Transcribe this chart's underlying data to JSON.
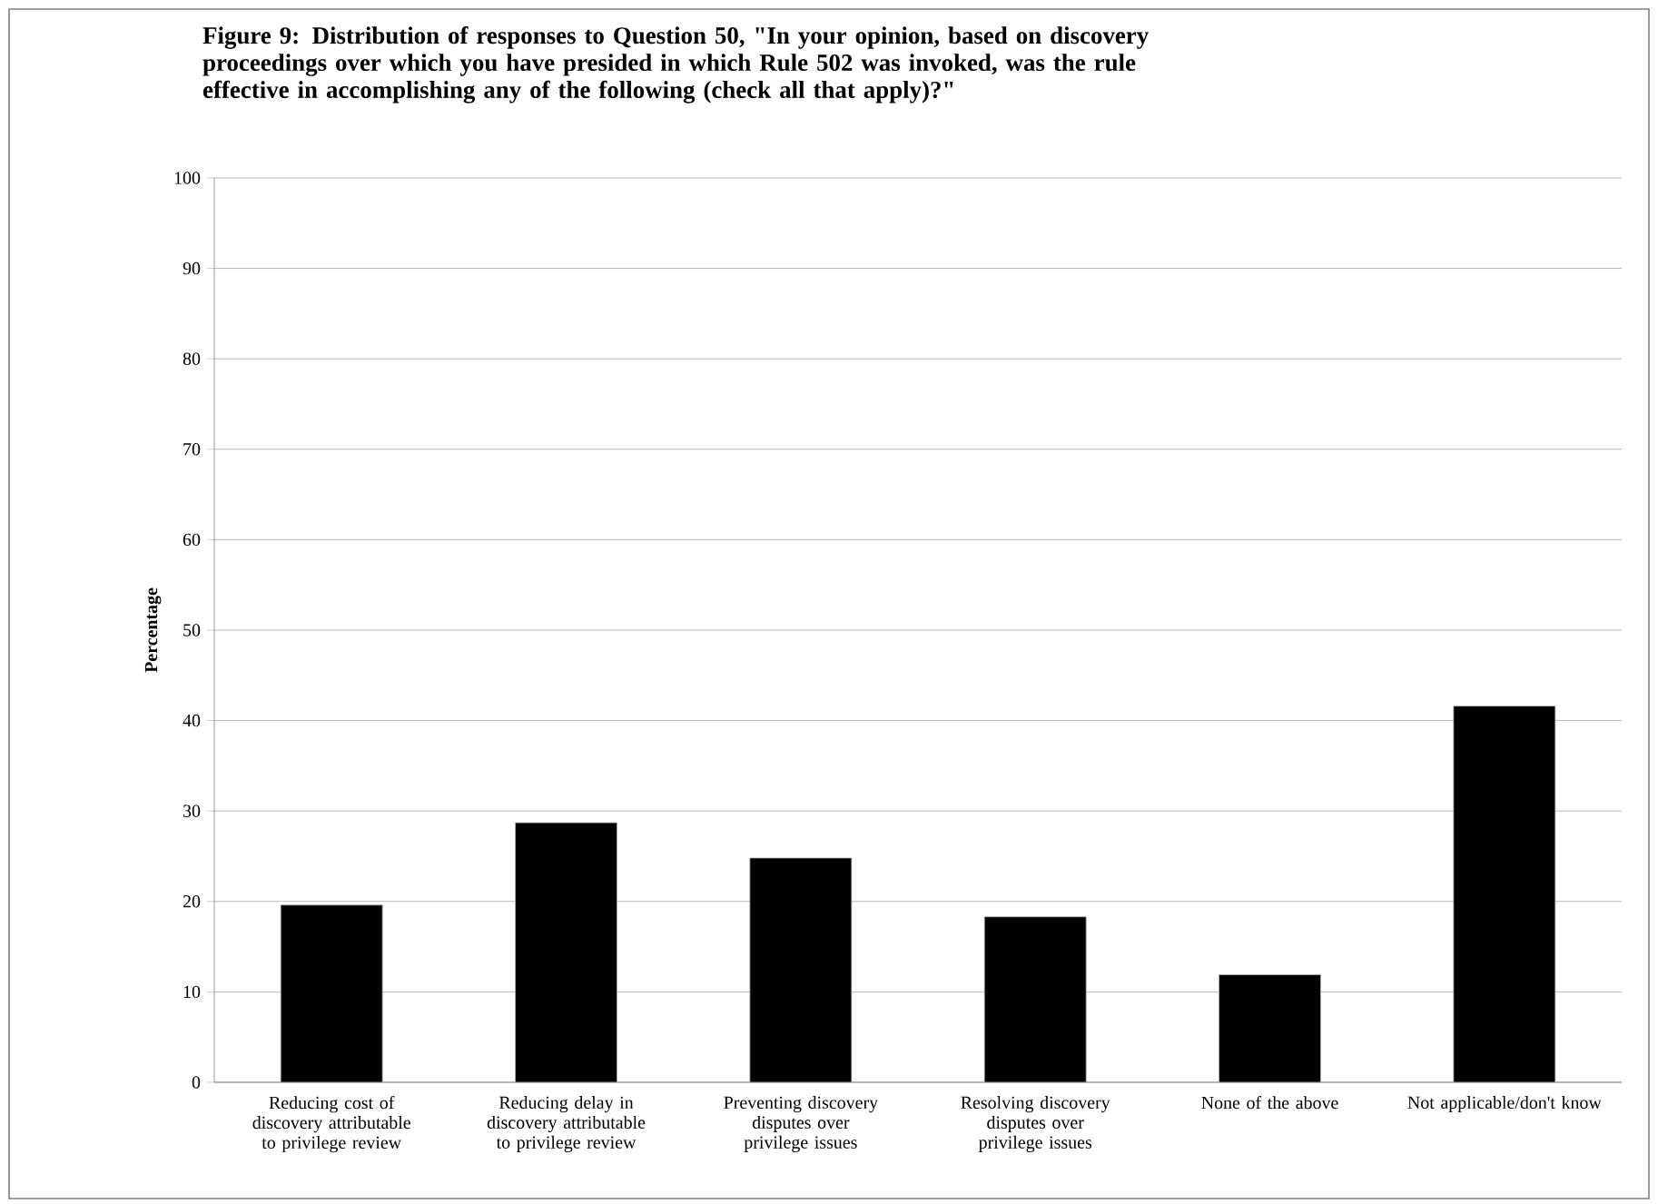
{
  "chart_data": {
    "type": "bar",
    "title": "Figure 9: Distribution of responses to Question 50, \"In your opinion, based on discovery proceedings over which you have presided in which Rule 502 was invoked, was the rule effective in accomplishing any of the following (check all that apply)?\"",
    "ylabel": "Percentage",
    "categories": [
      "Reducing cost of discovery attributable to privilege review",
      "Reducing delay in discovery attributable to privilege review",
      "Preventing discovery disputes over privilege issues",
      "Resolving discovery disputes over privilege issues",
      "None of the above",
      "Not applicable/don't know"
    ],
    "values": [
      19.6,
      28.7,
      24.8,
      18.3,
      11.9,
      41.6
    ],
    "color": "#000000",
    "ylim": [
      0,
      100
    ],
    "yticks": [
      0,
      10,
      20,
      30,
      40,
      50,
      60,
      70,
      80,
      90,
      100
    ],
    "grid": "y"
  }
}
